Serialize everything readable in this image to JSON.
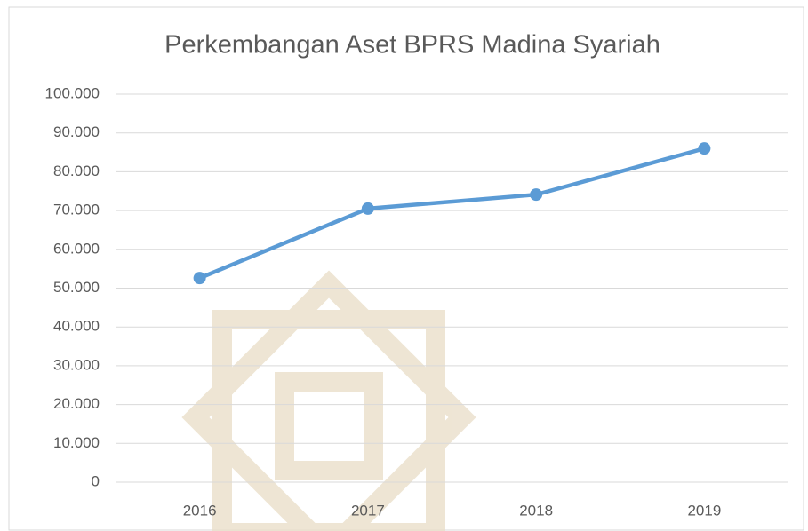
{
  "chart_data": {
    "type": "line",
    "title": "Perkembangan Aset BPRS Madina Syariah",
    "categories": [
      "2016",
      "2017",
      "2018",
      "2019"
    ],
    "values": [
      52600,
      70500,
      74100,
      86000
    ],
    "color": "#5b9bd5",
    "ylim": [
      0,
      100000
    ],
    "yticks": [
      0,
      {
        "value": 10000,
        "label": "10.000"
      },
      {
        "value": 20000,
        "label": "20.000"
      },
      {
        "value": 30000,
        "label": "30.000"
      },
      {
        "value": 40000,
        "label": "40.000"
      },
      {
        "value": 50000,
        "label": "50.000"
      },
      {
        "value": 60000,
        "label": "60.000"
      },
      {
        "value": 70000,
        "label": "70.000"
      },
      {
        "value": 80000,
        "label": "80.000"
      },
      {
        "value": 90000,
        "label": "90.000"
      },
      {
        "value": 100000,
        "label": "100.000"
      }
    ],
    "grid": true
  }
}
